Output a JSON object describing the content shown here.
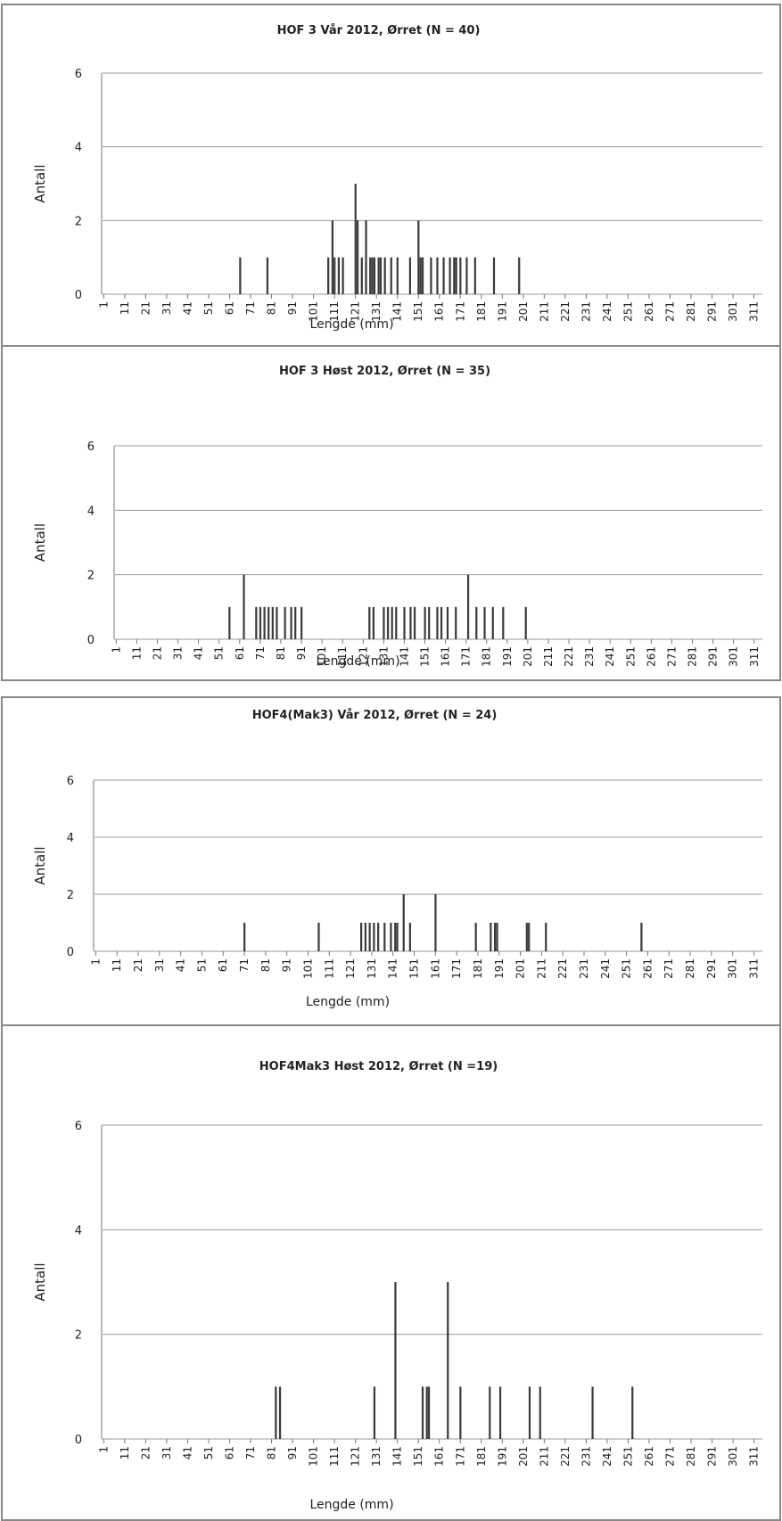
{
  "chart_data": [
    {
      "type": "bar",
      "title": "HOF 3 Vår 2012, Ørret  (N = 40)",
      "y_label": "Antall",
      "x_label": "Lengde (mm)",
      "color": "#3a3a3a",
      "grid": true,
      "x": [
        66,
        79,
        108,
        110,
        111,
        113,
        115,
        121,
        122,
        124,
        126,
        128,
        129,
        130,
        132,
        133,
        135,
        138,
        141,
        147,
        151,
        152,
        153,
        157,
        160,
        163,
        166,
        168,
        169,
        171,
        174,
        178,
        187,
        199
      ],
      "values": [
        1,
        1,
        1,
        2,
        1,
        1,
        1,
        3,
        2,
        1,
        2,
        1,
        1,
        1,
        1,
        1,
        1,
        1,
        1,
        1,
        2,
        1,
        1,
        1,
        1,
        1,
        1,
        1,
        1,
        1,
        1,
        1,
        1,
        1
      ],
      "xlim": [
        0,
        315
      ],
      "xticks": [
        1,
        11,
        21,
        31,
        41,
        51,
        61,
        71,
        81,
        91,
        101,
        111,
        121,
        131,
        141,
        151,
        161,
        171,
        181,
        191,
        201,
        211,
        221,
        231,
        241,
        251,
        261,
        271,
        281,
        291,
        301,
        311
      ],
      "ylim": [
        0,
        6
      ],
      "yticks": [
        0,
        2,
        4,
        6
      ]
    },
    {
      "type": "bar",
      "title": "HOF 3 Høst 2012, Ørret (N = 35)",
      "y_label": "Antall",
      "x_label": "Lengde (mm)",
      "color": "#3a3a3a",
      "grid": true,
      "x": [
        56,
        63,
        69,
        71,
        73,
        75,
        77,
        79,
        83,
        86,
        88,
        91,
        124,
        126,
        131,
        133,
        135,
        137,
        141,
        144,
        146,
        151,
        153,
        157,
        159,
        162,
        166,
        172,
        176,
        180,
        184,
        189,
        200
      ],
      "values": [
        1,
        2,
        1,
        1,
        1,
        1,
        1,
        1,
        1,
        1,
        1,
        1,
        1,
        1,
        1,
        1,
        1,
        1,
        1,
        1,
        1,
        1,
        1,
        1,
        1,
        1,
        1,
        2,
        1,
        1,
        1,
        1,
        1
      ],
      "xlim": [
        0,
        315
      ],
      "xticks": [
        1,
        11,
        21,
        31,
        41,
        51,
        61,
        71,
        81,
        91,
        101,
        111,
        121,
        131,
        141,
        151,
        161,
        171,
        181,
        191,
        201,
        211,
        221,
        231,
        241,
        251,
        261,
        271,
        281,
        291,
        301,
        311
      ],
      "ylim": [
        0,
        6
      ],
      "yticks": [
        0,
        2,
        4,
        6
      ]
    },
    {
      "type": "bar",
      "title": "HOF4(Mak3) Vår 2012, Ørret (N = 24)",
      "y_label": "Antall",
      "x_label": "Lengde (mm)",
      "color": "#3a3a3a",
      "grid": true,
      "x": [
        71,
        106,
        126,
        128,
        130,
        132,
        134,
        137,
        140,
        142,
        143,
        146,
        149,
        161,
        180,
        187,
        189,
        190,
        204,
        205,
        213,
        258
      ],
      "values": [
        1,
        1,
        1,
        1,
        1,
        1,
        1,
        1,
        1,
        1,
        1,
        2,
        1,
        2,
        1,
        1,
        1,
        1,
        1,
        1,
        1,
        1
      ],
      "xlim": [
        0,
        315
      ],
      "xticks": [
        1,
        11,
        21,
        31,
        41,
        51,
        61,
        71,
        81,
        91,
        101,
        111,
        121,
        131,
        141,
        151,
        161,
        171,
        181,
        191,
        201,
        211,
        221,
        231,
        241,
        251,
        261,
        271,
        281,
        291,
        301,
        311
      ],
      "ylim": [
        0,
        6
      ],
      "yticks": [
        0,
        2,
        4,
        6
      ]
    },
    {
      "type": "bar",
      "title": "HOF4Mak3 Høst 2012, Ørret (N =19)",
      "y_label": "Antall",
      "x_label": "Lengde (mm)",
      "color": "#3a3a3a",
      "grid": true,
      "x": [
        83,
        85,
        130,
        140,
        153,
        155,
        156,
        165,
        171,
        185,
        190,
        204,
        209,
        234,
        253
      ],
      "values": [
        1,
        1,
        1,
        3,
        1,
        1,
        1,
        3,
        1,
        1,
        1,
        1,
        1,
        1,
        1
      ],
      "xlim": [
        0,
        315
      ],
      "xticks": [
        1,
        11,
        21,
        31,
        41,
        51,
        61,
        71,
        81,
        91,
        101,
        111,
        121,
        131,
        141,
        151,
        161,
        171,
        181,
        191,
        201,
        211,
        221,
        231,
        241,
        251,
        261,
        271,
        281,
        291,
        301,
        311
      ],
      "ylim": [
        0,
        6
      ],
      "yticks": [
        0,
        2,
        4,
        6
      ]
    }
  ]
}
